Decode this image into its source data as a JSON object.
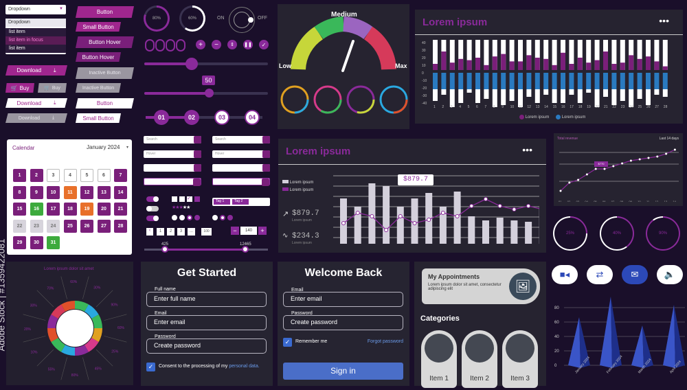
{
  "dropdown": {
    "label": "Dropdown",
    "menu_label": "Dropdown",
    "items": [
      "list item",
      "list item in focus",
      "list item"
    ]
  },
  "buttons": {
    "b1": "Button",
    "b2": "Small Button",
    "b3": "Button Hover",
    "b4": "Button Hover",
    "b5": "Inactive Button",
    "b6": "Inactive Button",
    "b7": "Button",
    "b8": "Small Button",
    "download": "Download",
    "buy": "Buy"
  },
  "progress": {
    "p1": "80%",
    "p2": "60%",
    "on": "ON",
    "off": "OFF"
  },
  "slider": {
    "value": "50",
    "min": "425",
    "max": "12465"
  },
  "steps": [
    "01",
    "02",
    "03",
    "04"
  ],
  "search": {
    "placeholder": "Search",
    "hover": "Hover",
    "tags": [
      "Tag 1",
      "Tag 2"
    ],
    "num": "140",
    "pages": [
      "1",
      "2",
      "3",
      "...",
      "100"
    ]
  },
  "gauge": {
    "top": "Medium",
    "left": "Low",
    "right": "Max"
  },
  "bar_panel": {
    "title": "Lorem ipsum",
    "legend": [
      "Lorem ipsum",
      "Lorem ipsum"
    ],
    "dots": "•••",
    "yaxis": [
      "40",
      "30",
      "20",
      "10",
      "0",
      "-10",
      "-20",
      "-30",
      "-40"
    ],
    "xaxis": [
      "1",
      "2",
      "3",
      "4",
      "5",
      "6",
      "7",
      "8",
      "9",
      "10",
      "11",
      "12",
      "13",
      "14",
      "15",
      "16",
      "17",
      "18",
      "19",
      "20",
      "21",
      "22",
      "23",
      "24",
      "25",
      "26",
      "27",
      "28"
    ]
  },
  "calendar": {
    "title": "Calendar",
    "month": "January 2024",
    "days": [
      "1",
      "2",
      "3",
      "4",
      "5",
      "6",
      "7",
      "8",
      "9",
      "10",
      "11",
      "12",
      "13",
      "14",
      "15",
      "16",
      "17",
      "18",
      "19",
      "20",
      "21",
      "22",
      "23",
      "24",
      "25",
      "26",
      "27",
      "28",
      "29",
      "30",
      "31"
    ]
  },
  "mid_panel": {
    "title": "Lorem ipsum",
    "dots": "•••",
    "legend": [
      "Lorem ipsum",
      "Lorem ipsum"
    ],
    "price": "$879.7",
    "stat1": "$879.7",
    "stat1_sub": "Lorem ipsum",
    "stat2": "$234.3",
    "stat2_sub": "Lorem ipsum"
  },
  "line_panel": {
    "title": "Total revenue",
    "legend": "Last 14 days",
    "tag": "$770",
    "xaxis": [
      "01",
      "02",
      "03",
      "04",
      "05",
      "06",
      "07",
      "08",
      "09",
      "10",
      "11",
      "12",
      "13",
      "14"
    ]
  },
  "donuts": [
    "25%",
    "40%",
    "90%"
  ],
  "wheel": {
    "title": "Lorem ipsum dolor sit amet",
    "pcts": [
      "30%",
      "90%",
      "60%",
      "25%",
      "45%",
      "80%",
      "55%",
      "10%",
      "20%",
      "30%",
      "70%",
      "60%"
    ]
  },
  "get_started": {
    "title": "Get Started",
    "name_label": "Full name",
    "name_ph": "Enter full name",
    "email_label": "Email",
    "email_ph": "Enter email",
    "pass_label": "Password",
    "pass_ph": "Create password",
    "consent": "Consent to the processing of my ",
    "consent_link": "personal data."
  },
  "welcome": {
    "title": "Welcome Back",
    "email_label": "Email",
    "email_ph": "Enter email",
    "pass_label": "Password",
    "pass_ph": "Create password",
    "remember": "Remember me",
    "forgot": "Forgot password",
    "signin": "Sign in"
  },
  "appointments": {
    "title": "My Appointments",
    "text": "Lorem ipsum dolor sit amet, consectetur adipiscing elit",
    "categories": "Categories",
    "items": [
      "Item 1",
      "Item 2",
      "Item 3"
    ]
  },
  "cone_chart": {
    "yaxis": [
      "80",
      "60",
      "40",
      "20",
      "0"
    ],
    "months": [
      "January 2024",
      "February 2024",
      "March 2024",
      "April 2024"
    ]
  },
  "watermark": "Adobe Stock | #1359422081",
  "chart_data": [
    {
      "type": "bar",
      "title": "Lorem ipsum",
      "categories": [
        "1",
        "2",
        "3",
        "4",
        "5",
        "6",
        "7",
        "8",
        "9",
        "10",
        "11",
        "12",
        "13",
        "14",
        "15",
        "16",
        "17",
        "18",
        "19",
        "20",
        "21",
        "22",
        "23",
        "24",
        "25",
        "26",
        "27",
        "28"
      ],
      "ylim": [
        -40,
        40
      ]
    },
    {
      "type": "bar",
      "title": "Lorem ipsum",
      "values": [
        66,
        54,
        88,
        84,
        54,
        66,
        74,
        54,
        76,
        40,
        34,
        38,
        34,
        32,
        54,
        60
      ]
    },
    {
      "type": "line",
      "title": "Total revenue",
      "x": [
        "01",
        "02",
        "03",
        "04",
        "05",
        "06",
        "07",
        "08",
        "09",
        "10",
        "11",
        "12",
        "13",
        "14"
      ]
    },
    {
      "type": "bar",
      "ylim": [
        0,
        80
      ],
      "categories": [
        "January 2024",
        "February 2024",
        "March 2024",
        "April 2024"
      ]
    }
  ]
}
